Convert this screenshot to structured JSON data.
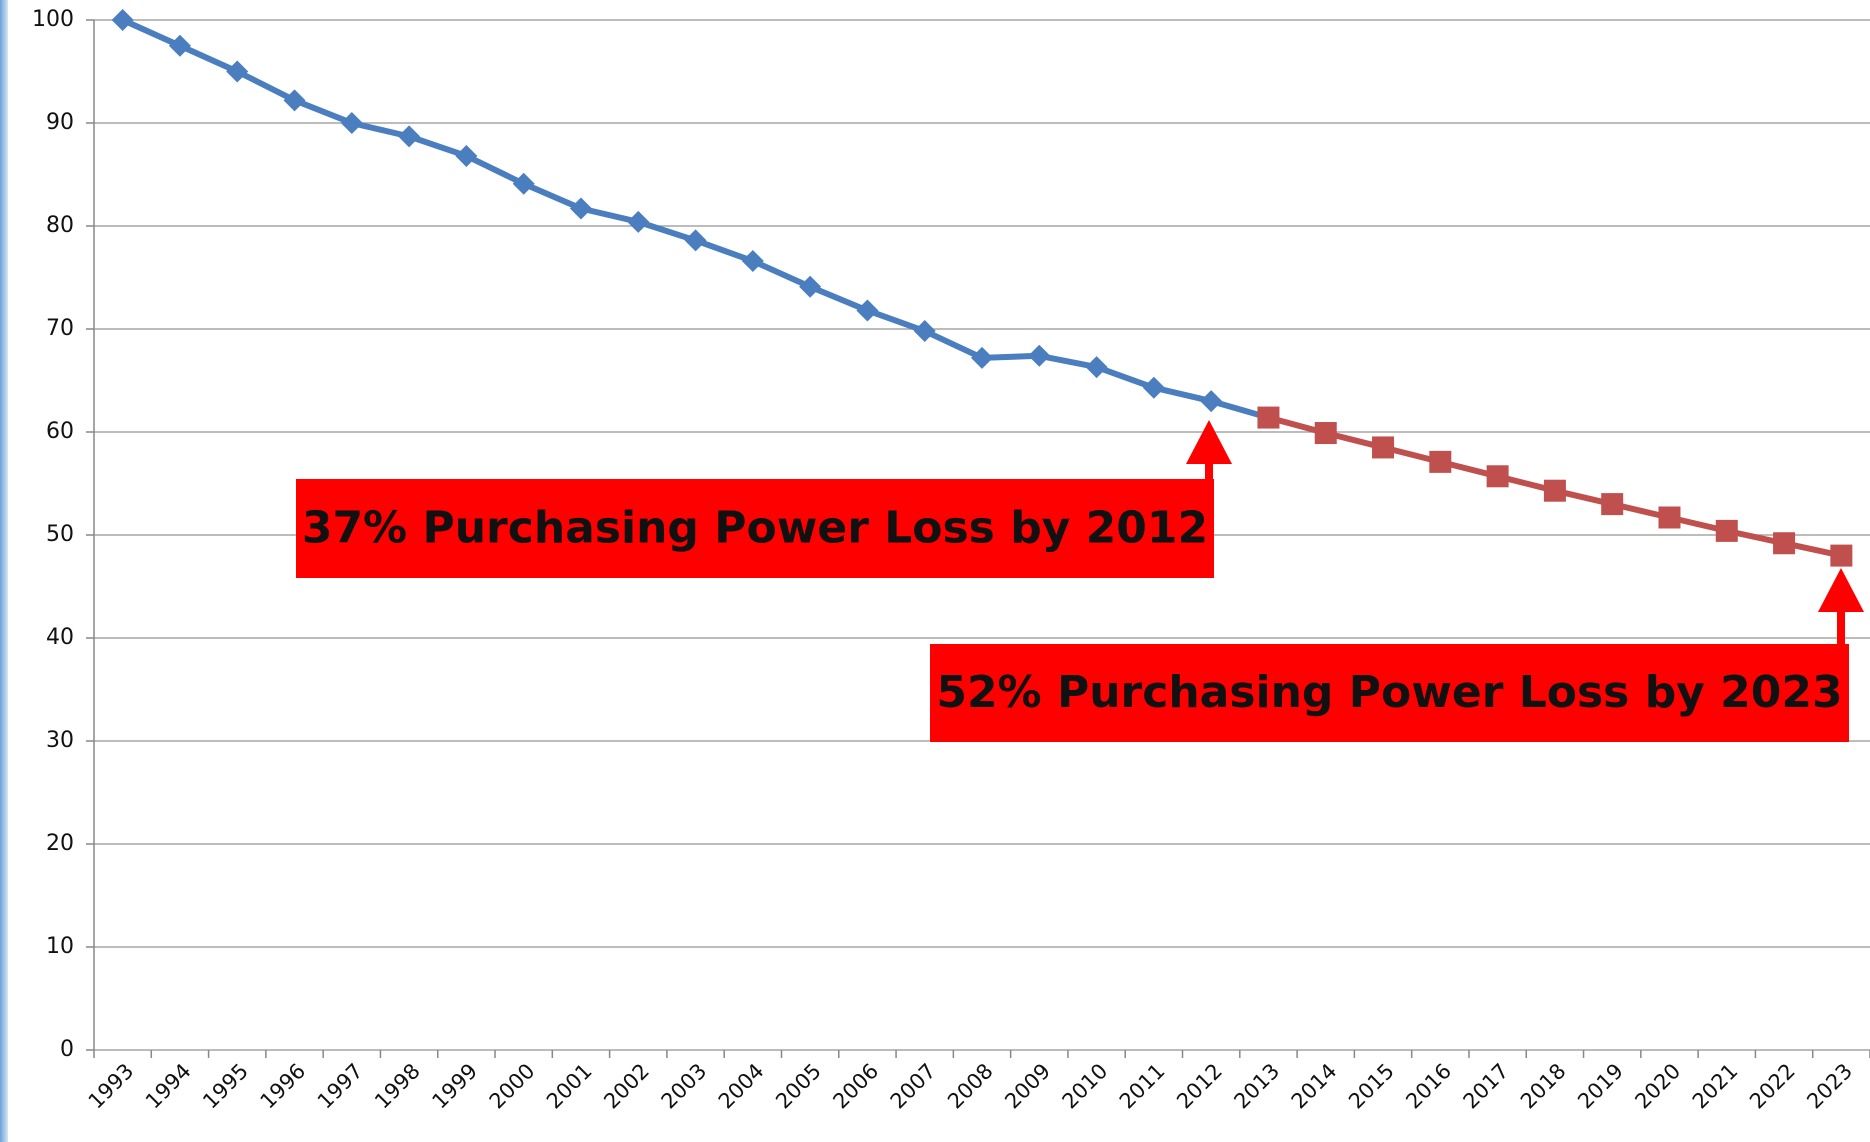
{
  "chart_data": {
    "type": "line",
    "categories": [
      "1993",
      "1994",
      "1995",
      "1996",
      "1997",
      "1998",
      "1999",
      "2000",
      "2001",
      "2002",
      "2003",
      "2004",
      "2005",
      "2006",
      "2007",
      "2008",
      "2009",
      "2010",
      "2011",
      "2012",
      "2013",
      "2014",
      "2015",
      "2016",
      "2017",
      "2018",
      "2019",
      "2020",
      "2021",
      "2022",
      "2023"
    ],
    "series": [
      {
        "color": "#4a7ebf",
        "marker": "diamond",
        "values": [
          100,
          97.5,
          95,
          92.2,
          90,
          88.7,
          86.8,
          84.1,
          81.7,
          80.4,
          78.6,
          76.6,
          74.1,
          71.8,
          69.8,
          67.2,
          67.4,
          66.3,
          64.3,
          63.0,
          null,
          null,
          null,
          null,
          null,
          null,
          null,
          null,
          null,
          null,
          null
        ]
      },
      {
        "color": "#c0504d",
        "marker": "square",
        "values": [
          null,
          null,
          null,
          null,
          null,
          null,
          null,
          null,
          null,
          null,
          null,
          null,
          null,
          null,
          null,
          null,
          null,
          null,
          null,
          null,
          61.4,
          59.9,
          58.5,
          57.1,
          55.7,
          54.3,
          53.0,
          51.7,
          50.4,
          49.2,
          48.0
        ]
      }
    ],
    "ylim": [
      0,
      100
    ],
    "yticks": [
      0,
      10,
      20,
      30,
      40,
      50,
      60,
      70,
      80,
      90,
      100
    ],
    "grid": true,
    "annotations": [
      "37% Purchasing Power Loss by 2012",
      "52% Purchasing Power Loss by 2023"
    ],
    "annotation_color": "#ff0000"
  }
}
